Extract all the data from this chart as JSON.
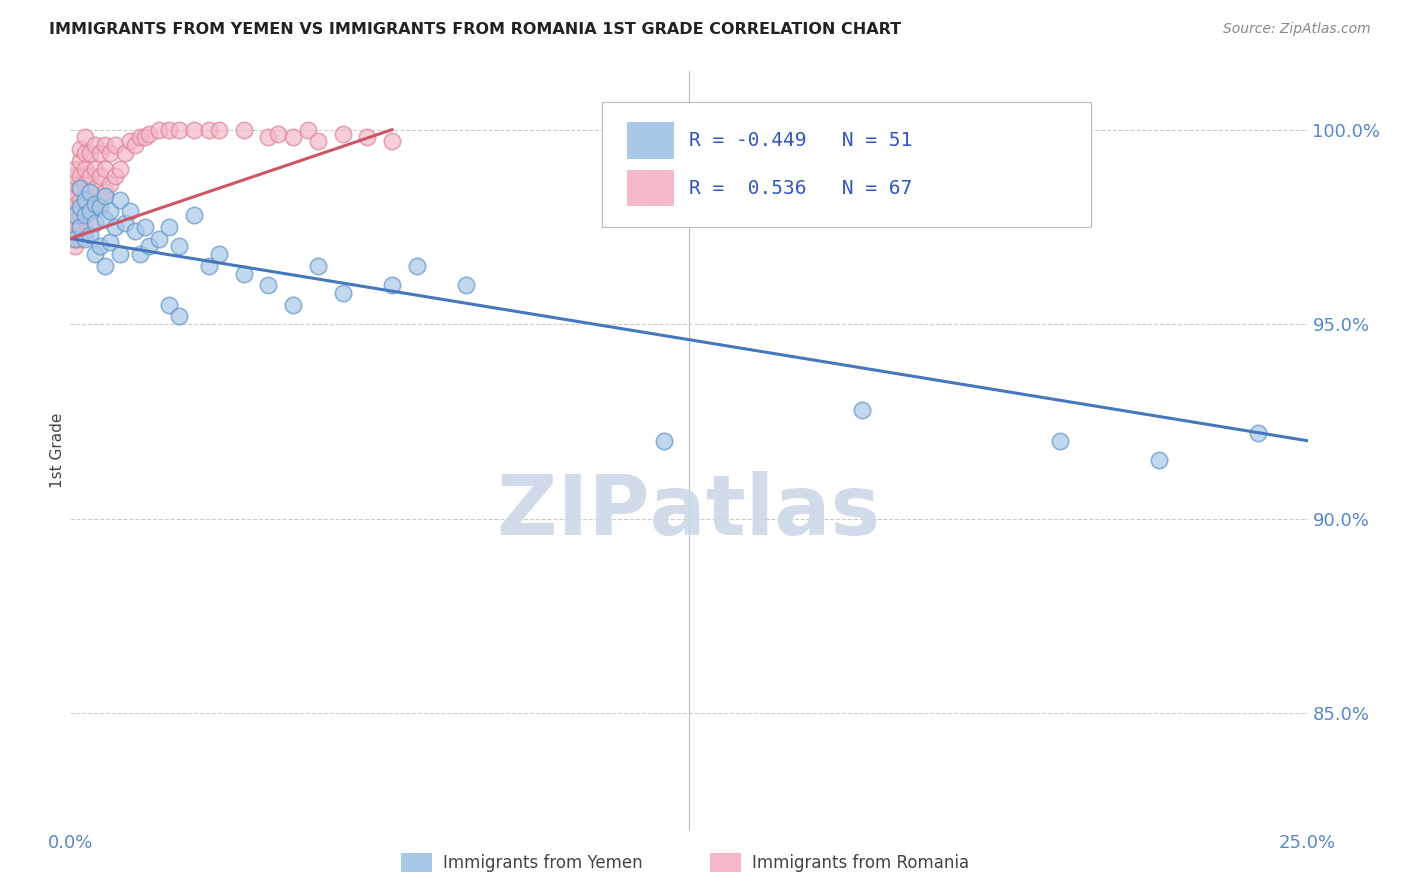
{
  "title": "IMMIGRANTS FROM YEMEN VS IMMIGRANTS FROM ROMANIA 1ST GRADE CORRELATION CHART",
  "source": "Source: ZipAtlas.com",
  "ylabel": "1st Grade",
  "ylabel_right_labels": [
    "100.0%",
    "95.0%",
    "90.0%",
    "85.0%"
  ],
  "ylabel_right_values": [
    1.0,
    0.95,
    0.9,
    0.85
  ],
  "x_min": 0.0,
  "x_max": 0.25,
  "y_min": 0.82,
  "y_max": 1.015,
  "legend_blue_R": "-0.449",
  "legend_blue_N": "51",
  "legend_pink_R": "0.536",
  "legend_pink_N": "67",
  "legend_label_blue": "Immigrants from Yemen",
  "legend_label_pink": "Immigrants from Romania",
  "blue_color": "#a8c8e8",
  "blue_edge_color": "#6699cc",
  "pink_color": "#f4b8c8",
  "pink_edge_color": "#dd8899",
  "blue_line_color": "#4477bb",
  "pink_line_color": "#cc5566",
  "watermark_color": "#ccd8e8",
  "blue_scatter_x": [
    0.001,
    0.001,
    0.002,
    0.002,
    0.002,
    0.003,
    0.003,
    0.003,
    0.004,
    0.004,
    0.004,
    0.005,
    0.005,
    0.005,
    0.006,
    0.006,
    0.007,
    0.007,
    0.007,
    0.008,
    0.008,
    0.009,
    0.01,
    0.01,
    0.011,
    0.012,
    0.013,
    0.014,
    0.015,
    0.016,
    0.018,
    0.02,
    0.022,
    0.025,
    0.028,
    0.03,
    0.035,
    0.04,
    0.045,
    0.05,
    0.055,
    0.065,
    0.07,
    0.08,
    0.02,
    0.022,
    0.12,
    0.16,
    0.2,
    0.22,
    0.24
  ],
  "blue_scatter_y": [
    0.978,
    0.972,
    0.985,
    0.98,
    0.975,
    0.982,
    0.978,
    0.972,
    0.984,
    0.979,
    0.973,
    0.981,
    0.976,
    0.968,
    0.98,
    0.97,
    0.983,
    0.977,
    0.965,
    0.979,
    0.971,
    0.975,
    0.982,
    0.968,
    0.976,
    0.979,
    0.974,
    0.968,
    0.975,
    0.97,
    0.972,
    0.975,
    0.97,
    0.978,
    0.965,
    0.968,
    0.963,
    0.96,
    0.955,
    0.965,
    0.958,
    0.96,
    0.965,
    0.96,
    0.955,
    0.952,
    0.92,
    0.928,
    0.92,
    0.915,
    0.922
  ],
  "pink_scatter_x": [
    0.001,
    0.001,
    0.001,
    0.001,
    0.001,
    0.001,
    0.001,
    0.001,
    0.001,
    0.001,
    0.001,
    0.002,
    0.002,
    0.002,
    0.002,
    0.002,
    0.002,
    0.002,
    0.002,
    0.003,
    0.003,
    0.003,
    0.003,
    0.003,
    0.003,
    0.003,
    0.004,
    0.004,
    0.004,
    0.004,
    0.004,
    0.005,
    0.005,
    0.005,
    0.005,
    0.006,
    0.006,
    0.006,
    0.007,
    0.007,
    0.007,
    0.008,
    0.008,
    0.009,
    0.009,
    0.01,
    0.011,
    0.012,
    0.013,
    0.014,
    0.015,
    0.016,
    0.018,
    0.02,
    0.022,
    0.025,
    0.028,
    0.03,
    0.035,
    0.04,
    0.042,
    0.045,
    0.048,
    0.05,
    0.055,
    0.06,
    0.065
  ],
  "pink_scatter_y": [
    0.97,
    0.972,
    0.974,
    0.976,
    0.978,
    0.98,
    0.982,
    0.984,
    0.986,
    0.988,
    0.99,
    0.972,
    0.975,
    0.978,
    0.982,
    0.985,
    0.988,
    0.992,
    0.995,
    0.974,
    0.978,
    0.982,
    0.986,
    0.99,
    0.994,
    0.998,
    0.976,
    0.98,
    0.984,
    0.988,
    0.994,
    0.98,
    0.985,
    0.99,
    0.996,
    0.982,
    0.988,
    0.994,
    0.984,
    0.99,
    0.996,
    0.986,
    0.994,
    0.988,
    0.996,
    0.99,
    0.994,
    0.997,
    0.996,
    0.998,
    0.998,
    0.999,
    1.0,
    1.0,
    1.0,
    1.0,
    1.0,
    1.0,
    1.0,
    0.998,
    0.999,
    0.998,
    1.0,
    0.997,
    0.999,
    0.998,
    0.997
  ],
  "blue_trendline_x": [
    0.0,
    0.25
  ],
  "blue_trendline_y": [
    0.972,
    0.92
  ],
  "pink_trendline_x": [
    0.0,
    0.065
  ],
  "pink_trendline_y": [
    0.972,
    1.0
  ]
}
